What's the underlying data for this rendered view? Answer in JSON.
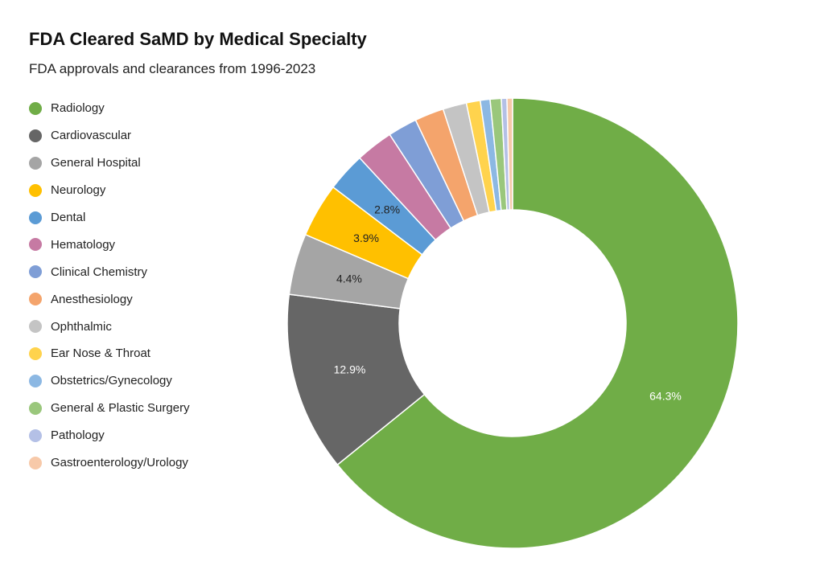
{
  "chart_data": {
    "type": "pie",
    "donut": true,
    "title": "FDA Cleared SaMD by Medical Specialty",
    "subtitle": "FDA approvals and clearances from 1996-2023",
    "legend_position": "left",
    "slices": [
      {
        "label": "Radiology",
        "value": 64.3,
        "color": "#70ad47",
        "display": "64.3%",
        "text_color": "#ffffff"
      },
      {
        "label": "Cardiovascular",
        "value": 12.9,
        "color": "#666666",
        "display": "12.9%",
        "text_color": "#ffffff"
      },
      {
        "label": "General Hospital",
        "value": 4.4,
        "color": "#a5a5a5",
        "display": "4.4%",
        "text_color": "#222222"
      },
      {
        "label": "Neurology",
        "value": 3.9,
        "color": "#ffc000",
        "display": "3.9%",
        "text_color": "#222222"
      },
      {
        "label": "Dental",
        "value": 2.8,
        "color": "#5b9bd5",
        "display": "2.8%",
        "text_color": "#222222"
      },
      {
        "label": "Hematology",
        "value": 2.7,
        "color": "#c67aa3",
        "display": "",
        "text_color": "#222222"
      },
      {
        "label": "Clinical Chemistry",
        "value": 2.1,
        "color": "#7f9ed6",
        "display": "",
        "text_color": "#222222"
      },
      {
        "label": "Anesthesiology",
        "value": 2.1,
        "color": "#f4a46c",
        "display": "",
        "text_color": "#222222"
      },
      {
        "label": "Ophthalmic",
        "value": 1.7,
        "color": "#c4c4c4",
        "display": "",
        "text_color": "#222222"
      },
      {
        "label": "Ear Nose & Throat",
        "value": 1.0,
        "color": "#ffd34d",
        "display": "",
        "text_color": "#222222"
      },
      {
        "label": "Obstetrics/Gynecology",
        "value": 0.7,
        "color": "#8cb8e3",
        "display": "",
        "text_color": "#222222"
      },
      {
        "label": "General & Plastic Surgery",
        "value": 0.8,
        "color": "#9ac77c",
        "display": "",
        "text_color": "#222222"
      },
      {
        "label": "Pathology",
        "value": 0.4,
        "color": "#b4c0e6",
        "display": "",
        "text_color": "#222222"
      },
      {
        "label": "Gastroenterology/Urology",
        "value": 0.4,
        "color": "#f7c9a9",
        "display": "",
        "text_color": "#222222"
      }
    ]
  }
}
